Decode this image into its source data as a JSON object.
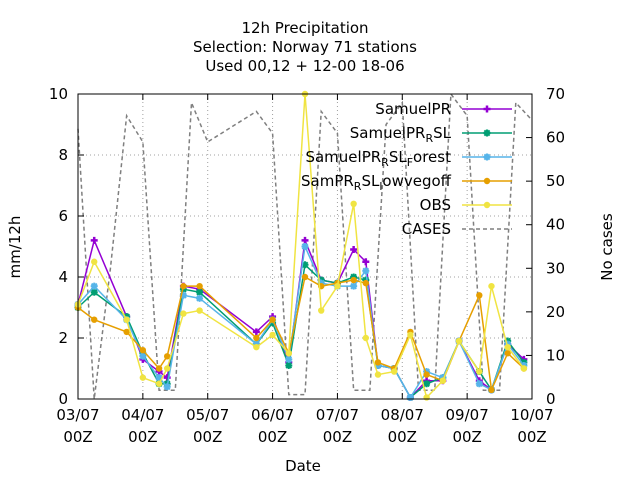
{
  "chart_data": {
    "type": "line",
    "title": "12h Precipitation",
    "subtitle": [
      "Selection: Norway     71 stations",
      "Used  00,12  + 12-00 18-06"
    ],
    "xlabel": "Date",
    "ylabel": "mm/12h",
    "y2label": "No cases",
    "xlim": [
      0,
      14
    ],
    "ylim": [
      0,
      10
    ],
    "y2lim": [
      0,
      70
    ],
    "yticks": [
      "0",
      "2",
      "4",
      "6",
      "8",
      "10"
    ],
    "y2ticks": [
      "0",
      "10",
      "20",
      "30",
      "40",
      "50",
      "60",
      "70"
    ],
    "xticks": [
      {
        "x": 0,
        "l1": "03/07",
        "l2": "00Z"
      },
      {
        "x": 2,
        "l1": "04/07",
        "l2": "00Z"
      },
      {
        "x": 4,
        "l1": "05/07",
        "l2": "00Z"
      },
      {
        "x": 6,
        "l1": "06/07",
        "l2": "00Z"
      },
      {
        "x": 8,
        "l1": "07/07",
        "l2": "00Z"
      },
      {
        "x": 10,
        "l1": "08/07",
        "l2": "00Z"
      },
      {
        "x": 12,
        "l1": "09/07",
        "l2": "00Z"
      },
      {
        "x": 14,
        "l1": "10/07",
        "l2": "00Z"
      }
    ],
    "grid": true,
    "legend_position": "top-right",
    "series": [
      {
        "name": "SamuelPR",
        "legend": [
          {
            "t": "SamuelPR"
          }
        ],
        "color": "#9400d3",
        "marker": "plus",
        "points": [
          [
            0,
            3.1
          ],
          [
            0.5,
            5.2
          ],
          [
            1.5,
            2.7
          ],
          [
            2,
            1.3
          ],
          [
            2.5,
            0.9
          ],
          [
            2.75,
            0.7
          ],
          [
            3.25,
            3.7
          ],
          [
            3.75,
            3.6
          ],
          [
            5.5,
            2.2
          ],
          [
            6,
            2.7
          ],
          [
            6.5,
            1.2
          ],
          [
            7,
            5.2
          ],
          [
            7.5,
            3.9
          ],
          [
            8,
            3.8
          ],
          [
            8.5,
            4.9
          ],
          [
            8.875,
            4.5
          ],
          [
            9.25,
            1.1
          ],
          [
            9.75,
            1.0
          ],
          [
            10.25,
            0.05
          ],
          [
            10.75,
            0.6
          ],
          [
            11.25,
            0.6
          ],
          [
            11.75,
            1.9
          ],
          [
            12.375,
            0.6
          ],
          [
            12.75,
            0.3
          ],
          [
            13.25,
            1.8
          ],
          [
            13.75,
            1.3
          ]
        ]
      },
      {
        "name": "SamuelPR_R SL",
        "legend": [
          {
            "t": "SamuelPR"
          },
          {
            "t": "R",
            "sub": true
          },
          {
            "t": "SL"
          }
        ],
        "color": "#009e73",
        "marker": "star",
        "points": [
          [
            0,
            3.0
          ],
          [
            0.5,
            3.5
          ],
          [
            1.5,
            2.7
          ],
          [
            2,
            1.5
          ],
          [
            2.5,
            0.5
          ],
          [
            2.75,
            0.5
          ],
          [
            3.25,
            3.6
          ],
          [
            3.75,
            3.5
          ],
          [
            5.5,
            1.8
          ],
          [
            6,
            2.5
          ],
          [
            6.5,
            1.1
          ],
          [
            7,
            4.4
          ],
          [
            7.5,
            3.9
          ],
          [
            8,
            3.8
          ],
          [
            8.5,
            4.0
          ],
          [
            8.875,
            3.9
          ],
          [
            9.25,
            1.1
          ],
          [
            9.75,
            1.0
          ],
          [
            10.25,
            0.05
          ],
          [
            10.75,
            0.5
          ],
          [
            11.25,
            0.7
          ],
          [
            11.75,
            1.9
          ],
          [
            12.375,
            0.9
          ],
          [
            12.75,
            0.3
          ],
          [
            13.25,
            1.9
          ],
          [
            13.75,
            1.2
          ]
        ]
      },
      {
        "name": "SamuelPR_R SL_Forest",
        "legend": [
          {
            "t": "SamuelPR"
          },
          {
            "t": "R",
            "sub": true
          },
          {
            "t": "SL"
          },
          {
            "t": "F",
            "sub": true
          },
          {
            "t": "orest"
          }
        ],
        "color": "#56b4e9",
        "marker": "star",
        "points": [
          [
            0,
            3.1
          ],
          [
            0.5,
            3.7
          ],
          [
            1.5,
            2.6
          ],
          [
            2,
            1.4
          ],
          [
            2.5,
            0.7
          ],
          [
            2.75,
            0.4
          ],
          [
            3.25,
            3.4
          ],
          [
            3.75,
            3.3
          ],
          [
            5.5,
            1.8
          ],
          [
            6,
            2.6
          ],
          [
            6.5,
            1.3
          ],
          [
            7,
            5.0
          ],
          [
            7.5,
            3.8
          ],
          [
            8,
            3.7
          ],
          [
            8.5,
            3.7
          ],
          [
            8.875,
            4.2
          ],
          [
            9.25,
            1.1
          ],
          [
            9.75,
            1.0
          ],
          [
            10.25,
            0.05
          ],
          [
            10.75,
            0.9
          ],
          [
            11.25,
            0.7
          ],
          [
            11.75,
            1.9
          ],
          [
            12.375,
            0.5
          ],
          [
            12.75,
            0.3
          ],
          [
            13.25,
            1.8
          ],
          [
            13.75,
            1.1
          ]
        ]
      },
      {
        "name": "SamPR_R SL_lowvegoff",
        "legend": [
          {
            "t": "SamPR"
          },
          {
            "t": "R",
            "sub": true
          },
          {
            "t": "SL"
          },
          {
            "t": "l",
            "sub": true
          },
          {
            "t": "owvegoff"
          }
        ],
        "color": "#e69f00",
        "marker": "circle",
        "points": [
          [
            0,
            3.0
          ],
          [
            0.5,
            2.6
          ],
          [
            1.5,
            2.2
          ],
          [
            2,
            1.6
          ],
          [
            2.5,
            1.0
          ],
          [
            2.75,
            1.4
          ],
          [
            3.25,
            3.7
          ],
          [
            3.75,
            3.7
          ],
          [
            5.5,
            2.0
          ],
          [
            6,
            2.6
          ],
          [
            6.5,
            1.5
          ],
          [
            7,
            4.0
          ],
          [
            7.5,
            3.7
          ],
          [
            8,
            3.8
          ],
          [
            8.5,
            3.9
          ],
          [
            8.875,
            3.8
          ],
          [
            9.25,
            1.2
          ],
          [
            9.75,
            1.0
          ],
          [
            10.25,
            2.2
          ],
          [
            10.75,
            0.8
          ],
          [
            11.25,
            0.6
          ],
          [
            11.75,
            1.9
          ],
          [
            12.375,
            3.4
          ],
          [
            12.75,
            0.3
          ],
          [
            13.25,
            1.5
          ],
          [
            13.75,
            1.0
          ]
        ]
      },
      {
        "name": "OBS",
        "legend": [
          {
            "t": "OBS"
          }
        ],
        "color": "#f0e442",
        "marker": "circle",
        "points": [
          [
            0,
            3.1
          ],
          [
            0.5,
            4.5
          ],
          [
            1.5,
            2.6
          ],
          [
            2,
            0.7
          ],
          [
            2.5,
            0.5
          ],
          [
            2.75,
            1.0
          ],
          [
            3.25,
            2.8
          ],
          [
            3.75,
            2.9
          ],
          [
            5.5,
            1.7
          ],
          [
            6,
            2.1
          ],
          [
            6.5,
            1.5
          ],
          [
            7,
            10.0
          ],
          [
            7.5,
            2.9
          ],
          [
            8,
            3.7
          ],
          [
            8.5,
            6.4
          ],
          [
            8.875,
            2.0
          ],
          [
            9.25,
            0.8
          ],
          [
            9.75,
            0.9
          ],
          [
            10.25,
            2.1
          ],
          [
            10.75,
            0.05
          ],
          [
            11.25,
            0.6
          ],
          [
            11.75,
            1.9
          ],
          [
            12.375,
            0.9
          ],
          [
            12.75,
            3.7
          ],
          [
            13.25,
            1.7
          ],
          [
            13.75,
            1.0
          ]
        ]
      }
    ],
    "cases": {
      "name": "CASES",
      "legend": [
        {
          "t": "CASES"
        }
      ],
      "color": "#7f7f7f",
      "axis": "y2",
      "points": [
        [
          0,
          62
        ],
        [
          0.5,
          0
        ],
        [
          1,
          30
        ],
        [
          1.5,
          65
        ],
        [
          2,
          59
        ],
        [
          2.5,
          2
        ],
        [
          3,
          2
        ],
        [
          3.5,
          68
        ],
        [
          4,
          59
        ],
        [
          5.5,
          66
        ],
        [
          6,
          61
        ],
        [
          6.5,
          1
        ],
        [
          7,
          1
        ],
        [
          7.5,
          66
        ],
        [
          8,
          61
        ],
        [
          8.5,
          2
        ],
        [
          9,
          2
        ],
        [
          9.5,
          63
        ],
        [
          10,
          68
        ],
        [
          10.5,
          2
        ],
        [
          11,
          2
        ],
        [
          11.5,
          70
        ],
        [
          12,
          65
        ],
        [
          12.5,
          2
        ],
        [
          13,
          2
        ],
        [
          13.5,
          68
        ],
        [
          14,
          64
        ]
      ]
    }
  }
}
